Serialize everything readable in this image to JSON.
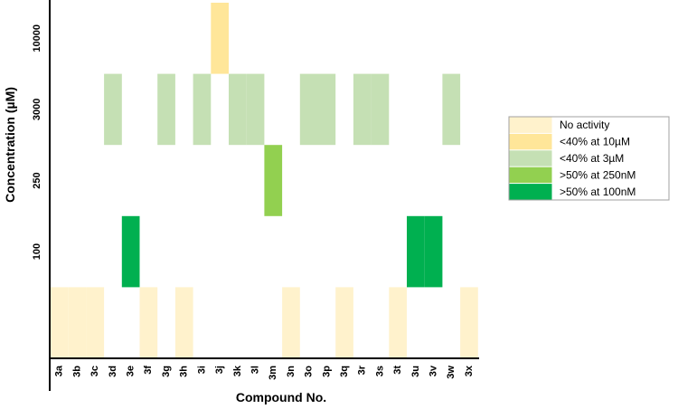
{
  "chart_data": {
    "type": "heatmap",
    "xlabel": "Compound No.",
    "ylabel": "Concentration (µM)",
    "categories": [
      "3a",
      "3b",
      "3c",
      "3d",
      "3e",
      "3f",
      "3g",
      "3h",
      "3i",
      "3j",
      "3k",
      "3l",
      "3m",
      "3n",
      "3o",
      "3p",
      "3q",
      "3r",
      "3s",
      "3t",
      "3u",
      "3v",
      "3w",
      "3x"
    ],
    "y_levels": [
      "",
      "100",
      "250",
      "3000",
      "10000"
    ],
    "legend_placement": "right",
    "legend": [
      {
        "key": "none",
        "label": "No activity",
        "color": "#fff2cc"
      },
      {
        "key": "c10",
        "label": "<40% at 10µM",
        "color": "#ffe699"
      },
      {
        "key": "c3",
        "label": "<40% at 3µM",
        "color": "#c5e0b4"
      },
      {
        "key": "n250",
        "label": ">50% at 250nM",
        "color": "#92d050"
      },
      {
        "key": "n100",
        "label": ">50% at 100nM",
        "color": "#00b050"
      }
    ],
    "values": [
      {
        "compound": "3a",
        "level": 0,
        "activity": "none"
      },
      {
        "compound": "3b",
        "level": 0,
        "activity": "none"
      },
      {
        "compound": "3c",
        "level": 0,
        "activity": "none"
      },
      {
        "compound": "3d",
        "level": 3,
        "activity": "c3"
      },
      {
        "compound": "3e",
        "level": 1,
        "activity": "n100"
      },
      {
        "compound": "3f",
        "level": 0,
        "activity": "none"
      },
      {
        "compound": "3g",
        "level": 3,
        "activity": "c3"
      },
      {
        "compound": "3h",
        "level": 0,
        "activity": "none"
      },
      {
        "compound": "3i",
        "level": 3,
        "activity": "c3"
      },
      {
        "compound": "3j",
        "level": 4,
        "activity": "c10"
      },
      {
        "compound": "3k",
        "level": 3,
        "activity": "c3"
      },
      {
        "compound": "3l",
        "level": 3,
        "activity": "c3"
      },
      {
        "compound": "3m",
        "level": 2,
        "activity": "n250"
      },
      {
        "compound": "3n",
        "level": 0,
        "activity": "none"
      },
      {
        "compound": "3o",
        "level": 3,
        "activity": "c3"
      },
      {
        "compound": "3p",
        "level": 3,
        "activity": "c3"
      },
      {
        "compound": "3q",
        "level": 0,
        "activity": "none"
      },
      {
        "compound": "3r",
        "level": 3,
        "activity": "c3"
      },
      {
        "compound": "3s",
        "level": 3,
        "activity": "c3"
      },
      {
        "compound": "3t",
        "level": 0,
        "activity": "none"
      },
      {
        "compound": "3u",
        "level": 1,
        "activity": "n100"
      },
      {
        "compound": "3v",
        "level": 1,
        "activity": "n100"
      },
      {
        "compound": "3w",
        "level": 3,
        "activity": "c3"
      },
      {
        "compound": "3x",
        "level": 0,
        "activity": "none"
      }
    ]
  }
}
